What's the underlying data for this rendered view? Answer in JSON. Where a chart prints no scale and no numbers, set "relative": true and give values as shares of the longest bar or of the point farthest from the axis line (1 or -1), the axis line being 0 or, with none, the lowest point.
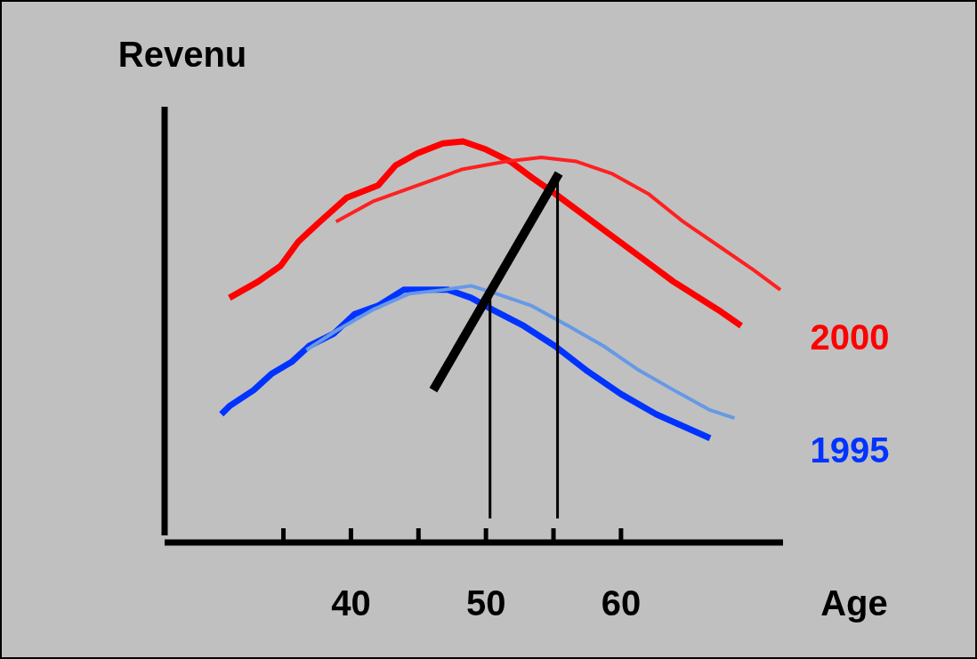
{
  "chart_data": {
    "type": "line",
    "relative": true,
    "xlabel": "Age",
    "ylabel": "Revenu",
    "xlim": [
      26.2,
      72
    ],
    "xticks": [
      {
        "value": 35,
        "label": null
      },
      40,
      {
        "value": 45,
        "label": null
      },
      50,
      {
        "value": 55,
        "label": null
      },
      60
    ],
    "marker": "none",
    "line_style": "solid",
    "series": [
      {
        "name": "2000",
        "color": "#ff0000",
        "x": [
          31.0,
          33.1,
          34.8,
          36.1,
          37.7,
          39.7,
          42.0,
          43.3,
          44.9,
          46.8,
          48.3,
          50.0,
          51.8,
          53.4,
          55.1,
          56.7,
          58.7,
          60.7,
          62.3,
          63.9,
          67.2,
          68.9
        ],
        "values": [
          0.61,
          0.65,
          0.69,
          0.75,
          0.8,
          0.86,
          0.89,
          0.94,
          0.97,
          0.995,
          1,
          0.98,
          0.95,
          0.91,
          0.87,
          0.83,
          0.78,
          0.73,
          0.69,
          0.65,
          0.58,
          0.54
        ]
      },
      {
        "color": "#ff2020",
        "x": [
          38.9,
          41.6,
          44.9,
          48.2,
          51.5,
          54.1,
          56.7,
          59.3,
          62.0,
          64.6,
          67.2,
          69.8,
          71.8
        ],
        "values": [
          0.8,
          0.85,
          0.89,
          0.93,
          0.95,
          0.96,
          0.95,
          0.92,
          0.87,
          0.8,
          0.74,
          0.68,
          0.63
        ]
      },
      {
        "name": "1995",
        "color": "#0033ff",
        "x": [
          30.4,
          31.0,
          31.9,
          32.8,
          34.1,
          35.6,
          36.9,
          38.7,
          40.3,
          42.0,
          43.9,
          45.6,
          47.2,
          48.9,
          50.5,
          52.8,
          55.1,
          57.4,
          60.0,
          62.6,
          64.6,
          66.6
        ],
        "values": [
          0.32,
          0.34,
          0.36,
          0.38,
          0.42,
          0.45,
          0.49,
          0.52,
          0.57,
          0.59,
          0.63,
          0.63,
          0.63,
          0.61,
          0.58,
          0.54,
          0.49,
          0.43,
          0.37,
          0.32,
          0.29,
          0.26
        ]
      },
      {
        "color": "#6699e6",
        "x": [
          36.7,
          39.0,
          41.6,
          44.3,
          46.9,
          48.9,
          50.8,
          53.4,
          56.1,
          58.7,
          61.3,
          63.9,
          66.6,
          68.4
        ],
        "values": [
          0.48,
          0.53,
          0.58,
          0.62,
          0.63,
          0.64,
          0.62,
          0.59,
          0.54,
          0.49,
          0.43,
          0.38,
          0.33,
          0.31
        ]
      },
      {
        "color": "#000000",
        "x": [
          46.1,
          55.4
        ],
        "values": [
          0.38,
          0.92
        ]
      },
      {
        "color": "#000000",
        "x": [
          50.3,
          50.3
        ],
        "values": [
          0.06,
          0.62
        ]
      },
      {
        "color": "#000000",
        "x": [
          55.3,
          55.3
        ],
        "values": [
          0.06,
          0.92
        ]
      }
    ]
  }
}
